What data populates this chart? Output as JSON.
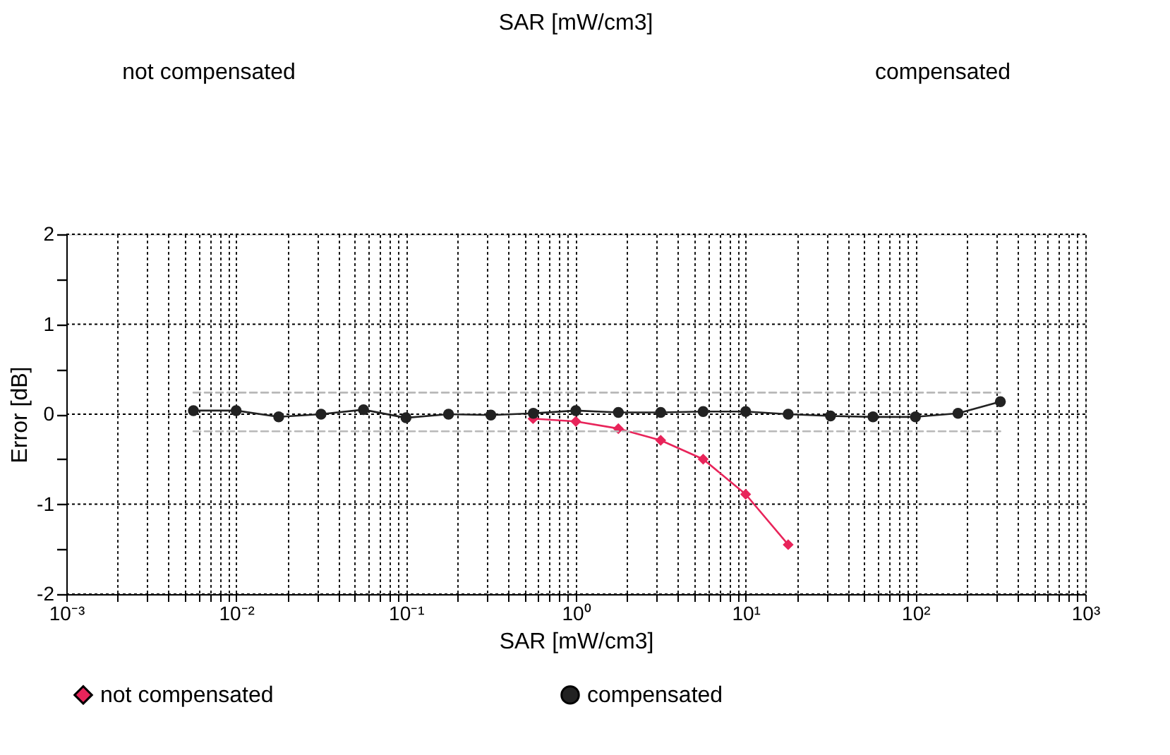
{
  "chart_data": {
    "type": "line",
    "annotations": [
      "SAR [mW/cm3]",
      "not compensated",
      "compensated"
    ],
    "xlabel": "SAR [mW/cm3]",
    "ylabel": "Error [dB]",
    "log": "x",
    "grid": true,
    "legend": "bottom",
    "line_style": "solid",
    "xlim": [
      0.001,
      1000
    ],
    "ylim": [
      -2,
      2
    ],
    "xticks": [
      {
        "value": 0.001,
        "label": "10⁻³"
      },
      {
        "value": 0.002,
        "label": null
      },
      {
        "value": 0.003,
        "label": null
      },
      {
        "value": 0.004,
        "label": null
      },
      {
        "value": 0.005,
        "label": null
      },
      {
        "value": 0.006,
        "label": null
      },
      {
        "value": 0.007,
        "label": null
      },
      {
        "value": 0.008,
        "label": null
      },
      {
        "value": 0.009,
        "label": null
      },
      {
        "value": 0.01,
        "label": "10⁻²"
      },
      {
        "value": 0.02,
        "label": null
      },
      {
        "value": 0.03,
        "label": null
      },
      {
        "value": 0.04,
        "label": null
      },
      {
        "value": 0.05,
        "label": null
      },
      {
        "value": 0.06,
        "label": null
      },
      {
        "value": 0.07,
        "label": null
      },
      {
        "value": 0.08,
        "label": null
      },
      {
        "value": 0.09,
        "label": null
      },
      {
        "value": 0.1,
        "label": "10⁻¹"
      },
      {
        "value": 0.2,
        "label": null
      },
      {
        "value": 0.3,
        "label": null
      },
      {
        "value": 0.4,
        "label": null
      },
      {
        "value": 0.5,
        "label": null
      },
      {
        "value": 0.6,
        "label": null
      },
      {
        "value": 0.7,
        "label": null
      },
      {
        "value": 0.8,
        "label": null
      },
      {
        "value": 0.9,
        "label": null
      },
      {
        "value": 1,
        "label": "10⁰"
      },
      {
        "value": 2,
        "label": null
      },
      {
        "value": 3,
        "label": null
      },
      {
        "value": 4,
        "label": null
      },
      {
        "value": 5,
        "label": null
      },
      {
        "value": 6,
        "label": null
      },
      {
        "value": 7,
        "label": null
      },
      {
        "value": 8,
        "label": null
      },
      {
        "value": 9,
        "label": null
      },
      {
        "value": 10,
        "label": "10¹"
      },
      {
        "value": 20,
        "label": null
      },
      {
        "value": 30,
        "label": null
      },
      {
        "value": 40,
        "label": null
      },
      {
        "value": 50,
        "label": null
      },
      {
        "value": 60,
        "label": null
      },
      {
        "value": 70,
        "label": null
      },
      {
        "value": 80,
        "label": null
      },
      {
        "value": 90,
        "label": null
      },
      {
        "value": 100,
        "label": "10²"
      },
      {
        "value": 200,
        "label": null
      },
      {
        "value": 300,
        "label": null
      },
      {
        "value": 400,
        "label": null
      },
      {
        "value": 500,
        "label": null
      },
      {
        "value": 600,
        "label": null
      },
      {
        "value": 700,
        "label": null
      },
      {
        "value": 800,
        "label": null
      },
      {
        "value": 900,
        "label": null
      },
      {
        "value": 1000,
        "label": "10³"
      }
    ],
    "yticks": [
      -2,
      {
        "value": -1.5,
        "label": null
      },
      -1,
      {
        "value": -0.5,
        "label": null
      },
      0,
      {
        "value": 0.5,
        "label": null
      },
      1,
      {
        "value": 1.5,
        "label": null
      },
      2
    ],
    "series": [
      {
        "name": "not compensated",
        "color": "#e8245a",
        "marker": "diamond",
        "x": [
          0.56,
          1.0,
          1.78,
          3.16,
          5.62,
          10,
          17.8
        ],
        "values": [
          -0.05,
          -0.08,
          -0.16,
          -0.29,
          -0.5,
          -0.89,
          -1.45
        ]
      },
      {
        "name": "compensated",
        "color": "#222222",
        "marker": "circle",
        "x": [
          0.0056,
          0.01,
          0.0178,
          0.0316,
          0.0562,
          0.1,
          0.178,
          0.316,
          0.562,
          1.0,
          1.78,
          3.16,
          5.62,
          10,
          17.8,
          31.6,
          56.2,
          100,
          178,
          316
        ],
        "values": [
          0.04,
          0.04,
          -0.03,
          0.0,
          0.05,
          -0.04,
          0.0,
          -0.01,
          0.01,
          0.04,
          0.02,
          0.02,
          0.03,
          0.03,
          0.0,
          -0.02,
          -0.03,
          -0.03,
          0.01,
          0.14
        ]
      },
      {
        "color": "#b8b8b8",
        "marker": "none",
        "line_style": "dashed",
        "x": [
          0.0056,
          316
        ],
        "values": [
          0.24,
          0.24
        ]
      },
      {
        "color": "#b8b8b8",
        "marker": "none",
        "line_style": "dashed",
        "x": [
          0.0056,
          316
        ],
        "values": [
          -0.19,
          -0.19
        ]
      }
    ]
  }
}
